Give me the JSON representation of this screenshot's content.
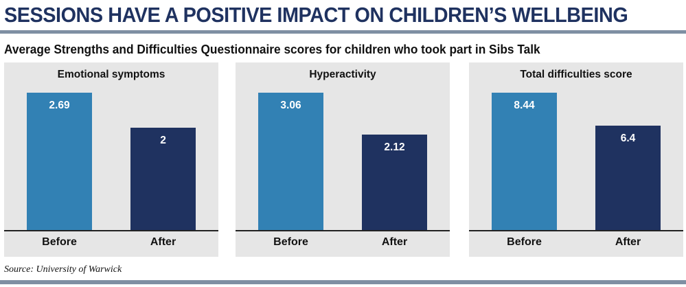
{
  "header": {
    "title": "SESSIONS HAVE A POSITIVE IMPACT ON CHILDREN’S WELLBEING",
    "subtitle": "Average Strengths and Difficulties Questionnaire scores for children who took part in Sibs Talk"
  },
  "footer": {
    "source": "Source: University of Warwick"
  },
  "colors": {
    "before": "#3281b4",
    "after": "#1f3260",
    "panel_bg": "#e6e6e6",
    "headline": "#1f3260"
  },
  "chart_data": [
    {
      "type": "bar",
      "title": "Emotional symptoms",
      "categories": [
        "Before",
        "After"
      ],
      "values": [
        2.69,
        2
      ],
      "labels": [
        "2.69",
        "2"
      ],
      "ylim": [
        0,
        2.69
      ]
    },
    {
      "type": "bar",
      "title": "Hyperactivity",
      "categories": [
        "Before",
        "After"
      ],
      "values": [
        3.06,
        2.12
      ],
      "labels": [
        "3.06",
        "2.12"
      ],
      "ylim": [
        0,
        3.06
      ]
    },
    {
      "type": "bar",
      "title": "Total difficulties score",
      "categories": [
        "Before",
        "After"
      ],
      "values": [
        8.44,
        6.4
      ],
      "labels": [
        "8.44",
        "6.4"
      ],
      "ylim": [
        0,
        8.44
      ]
    }
  ]
}
